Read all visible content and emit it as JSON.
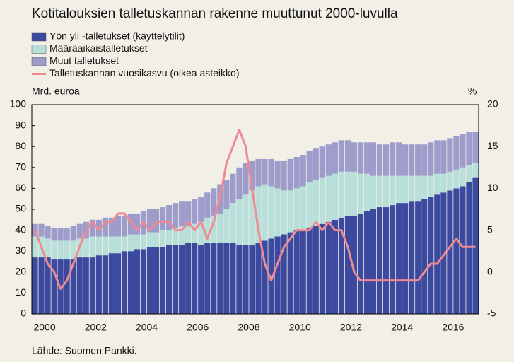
{
  "chart_data": {
    "type": "stacked_bar_line",
    "title": "Kotitalouksien talletuskannan rakenne muuttunut 2000-luvulla",
    "y_label": "Mrd. euroa",
    "y2_label": "%",
    "source": "Lähde: Suomen Pankki.",
    "categories": [
      "2000",
      null,
      null,
      null,
      null,
      null,
      null,
      null,
      "2002",
      null,
      null,
      null,
      null,
      null,
      null,
      null,
      "2004",
      null,
      null,
      null,
      null,
      null,
      null,
      null,
      "2006",
      null,
      null,
      null,
      null,
      null,
      null,
      null,
      "2008",
      null,
      null,
      null,
      null,
      null,
      null,
      null,
      "2010",
      null,
      null,
      null,
      null,
      null,
      null,
      null,
      "2012",
      null,
      null,
      null,
      null,
      null,
      null,
      null,
      "2014",
      null,
      null,
      null,
      null,
      null,
      null,
      null,
      "2016",
      null,
      null,
      null,
      null,
      null
    ],
    "ylim": [
      0,
      100
    ],
    "yticks": [
      0,
      10,
      20,
      30,
      40,
      50,
      60,
      70,
      80,
      90,
      100
    ],
    "y2lim": [
      -5,
      20
    ],
    "y2ticks": [
      -5,
      0,
      5,
      10,
      15,
      20
    ],
    "series": [
      {
        "name": "Yön yli -talletukset (käyttelytilit)",
        "color": "#3b4a9e",
        "values": [
          27,
          27,
          27,
          26,
          26,
          26,
          26,
          27,
          27,
          27,
          28,
          28,
          29,
          29,
          30,
          30,
          31,
          31,
          32,
          32,
          32,
          33,
          33,
          33,
          34,
          34,
          33,
          34,
          34,
          34,
          34,
          34,
          33,
          33,
          33,
          34,
          35,
          36,
          37,
          38,
          39,
          40,
          40,
          41,
          42,
          43,
          44,
          45,
          46,
          47,
          47,
          48,
          49,
          50,
          51,
          51,
          52,
          53,
          53,
          54,
          54,
          55,
          56,
          57,
          58,
          59,
          60,
          61,
          63,
          65
        ]
      },
      {
        "name": "Määräaikaistalletukset",
        "color": "#b8dfd9",
        "values": [
          10,
          10,
          9,
          9,
          9,
          9,
          9,
          9,
          9,
          10,
          9,
          9,
          8,
          8,
          7,
          8,
          7,
          7,
          7,
          7,
          8,
          7,
          8,
          9,
          8,
          9,
          11,
          12,
          13,
          14,
          16,
          19,
          22,
          24,
          26,
          27,
          27,
          25,
          23,
          21,
          20,
          20,
          21,
          22,
          22,
          22,
          22,
          22,
          22,
          21,
          21,
          19,
          18,
          16,
          15,
          15,
          14,
          13,
          13,
          12,
          12,
          11,
          10,
          10,
          9,
          9,
          9,
          9,
          8,
          7
        ]
      },
      {
        "name": "Muut talletukset",
        "color": "#9d9ccb",
        "values": [
          6,
          6,
          6,
          6,
          6,
          6,
          7,
          7,
          8,
          8,
          8,
          9,
          9,
          10,
          10,
          10,
          10,
          11,
          11,
          11,
          11,
          12,
          12,
          12,
          12,
          12,
          12,
          12,
          13,
          14,
          14,
          14,
          15,
          15,
          14,
          13,
          12,
          13,
          13,
          14,
          15,
          15,
          15,
          15,
          15,
          15,
          15,
          15,
          15,
          15,
          14,
          15,
          15,
          16,
          15,
          15,
          16,
          16,
          15,
          15,
          15,
          15,
          16,
          16,
          16,
          16,
          16,
          16,
          16,
          15
        ]
      },
      {
        "name": "Talletuskannan vuosikasvu (oikea asteikko)",
        "color": "#ef8a92",
        "axis": "y2",
        "values": [
          5,
          3,
          1,
          0,
          -2,
          -1,
          1,
          3,
          5,
          6,
          5,
          6,
          6,
          7,
          7,
          6,
          5,
          6,
          5,
          6,
          6,
          6,
          5,
          5,
          6,
          5,
          6,
          4,
          6,
          9,
          13,
          15,
          17,
          15,
          10,
          5,
          1,
          -1,
          1,
          3,
          4,
          5,
          5,
          5,
          6,
          5,
          6,
          5,
          5,
          3,
          0,
          -1,
          -1,
          -1,
          -1,
          -1,
          -1,
          -1,
          -1,
          -1,
          -1,
          0,
          1,
          1,
          2,
          3,
          4,
          3,
          3,
          3
        ]
      }
    ]
  }
}
